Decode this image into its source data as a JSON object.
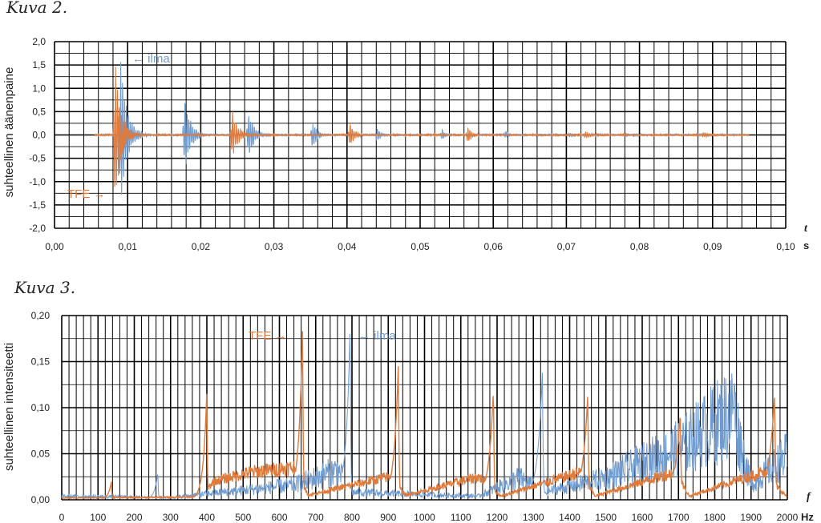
{
  "chart_data": [
    {
      "type": "line",
      "caption": "Kuva 2.",
      "ylabel": "suhteellinen äänenpaine",
      "x_variable": "t",
      "x_unit": "s",
      "xlim": [
        0,
        0.1
      ],
      "ylim": [
        -2,
        2
      ],
      "x_ticks": [
        "0,00",
        "0,01",
        "0,02",
        "0,03",
        "0,04",
        "0,05",
        "0,06",
        "0,07",
        "0,08",
        "0,09",
        "0,10"
      ],
      "y_ticks": [
        "2,0",
        "1,5",
        "1,0",
        "0,5",
        "0,0",
        "-0,5",
        "-1,0",
        "-1,5",
        "-2,0"
      ],
      "grid": true,
      "series": [
        {
          "name": "ilma",
          "color": "#6f9bd1",
          "annotation": "← ilma",
          "bursts": [
            {
              "t": 0.009,
              "amp": 1.75,
              "width": 0.0016
            },
            {
              "t": 0.0178,
              "amp": 0.9,
              "width": 0.0014
            },
            {
              "t": 0.0265,
              "amp": 0.55,
              "width": 0.0014
            },
            {
              "t": 0.0353,
              "amp": 0.3,
              "width": 0.0012
            },
            {
              "t": 0.0441,
              "amp": 0.18,
              "width": 0.001
            },
            {
              "t": 0.053,
              "amp": 0.12,
              "width": 0.001
            },
            {
              "t": 0.0617,
              "amp": 0.08,
              "width": 0.001
            },
            {
              "t": 0.0705,
              "amp": 0.06,
              "width": 0.001
            },
            {
              "t": 0.0793,
              "amp": 0.04,
              "width": 0.001
            }
          ]
        },
        {
          "name": "TFE",
          "color": "#e07a3a",
          "annotation": "TFE →",
          "bursts": [
            {
              "t": 0.0083,
              "amp": 1.7,
              "width": 0.0014
            },
            {
              "t": 0.0243,
              "amp": 0.55,
              "width": 0.0014
            },
            {
              "t": 0.0404,
              "amp": 0.28,
              "width": 0.0012
            },
            {
              "t": 0.0565,
              "amp": 0.18,
              "width": 0.0012
            },
            {
              "t": 0.0726,
              "amp": 0.1,
              "width": 0.0012
            },
            {
              "t": 0.0887,
              "amp": 0.06,
              "width": 0.0012
            }
          ]
        }
      ]
    },
    {
      "type": "line",
      "caption": "Kuva 3.",
      "ylabel": "suhteellinen intensiteetti",
      "x_variable": "f",
      "x_unit": "Hz",
      "xlim": [
        0,
        2000
      ],
      "ylim": [
        0,
        0.2
      ],
      "x_ticks": [
        "0",
        "100",
        "200",
        "300",
        "400",
        "500",
        "600",
        "700",
        "800",
        "900",
        "1000",
        "1100",
        "1200",
        "1300",
        "1400",
        "1500",
        "1600",
        "1700",
        "1800",
        "1900",
        "2000"
      ],
      "y_ticks": [
        "0,20",
        "0,15",
        "0,10",
        "0,05",
        "0,00"
      ],
      "grid": true,
      "series": [
        {
          "name": "ilma",
          "color": "#6f9bd1",
          "annotation": "← ilma",
          "peaks": [
            {
              "f": 265,
              "value": 0.03
            },
            {
              "f": 795,
              "value": 0.19
            },
            {
              "f": 1325,
              "value": 0.14
            },
            {
              "f": 1855,
              "value": 0.135
            }
          ],
          "baseline": [
            [
              0,
              0.005
            ],
            [
              300,
              0.003
            ],
            [
              640,
              0.02
            ],
            [
              760,
              0.04
            ],
            [
              800,
              0.01
            ],
            [
              1150,
              0.005
            ],
            [
              1260,
              0.03
            ],
            [
              1330,
              0.01
            ],
            [
              1500,
              0.03
            ],
            [
              1700,
              0.07
            ],
            [
              1850,
              0.12
            ],
            [
              1900,
              0.02
            ],
            [
              2000,
              0.06
            ]
          ]
        },
        {
          "name": "TFE",
          "color": "#e07a3a",
          "annotation": "TFE →",
          "peaks": [
            {
              "f": 137,
              "value": 0.02
            },
            {
              "f": 400,
              "value": 0.12
            },
            {
              "f": 664,
              "value": 0.19
            },
            {
              "f": 928,
              "value": 0.15
            },
            {
              "f": 1190,
              "value": 0.12
            },
            {
              "f": 1450,
              "value": 0.115
            },
            {
              "f": 1705,
              "value": 0.095
            },
            {
              "f": 1965,
              "value": 0.115
            }
          ],
          "baseline": [
            [
              0,
              0.002
            ],
            [
              380,
              0.003
            ],
            [
              420,
              0.02
            ],
            [
              520,
              0.03
            ],
            [
              640,
              0.035
            ],
            [
              680,
              0.005
            ],
            [
              900,
              0.025
            ],
            [
              950,
              0.005
            ],
            [
              1150,
              0.025
            ],
            [
              1210,
              0.004
            ],
            [
              1430,
              0.03
            ],
            [
              1470,
              0.004
            ],
            [
              1690,
              0.03
            ],
            [
              1730,
              0.004
            ],
            [
              1930,
              0.03
            ],
            [
              2000,
              0.003
            ]
          ]
        }
      ]
    }
  ]
}
